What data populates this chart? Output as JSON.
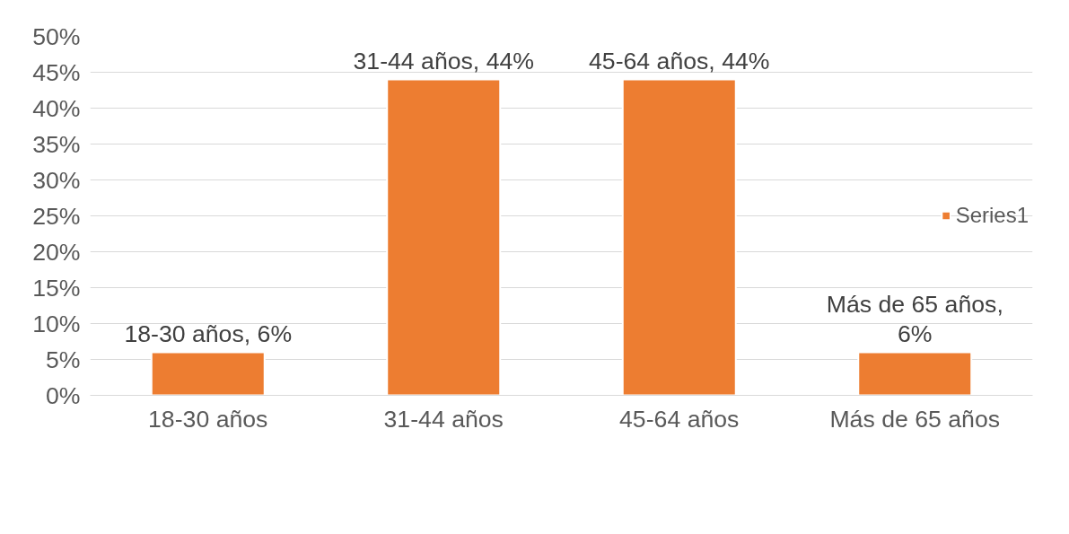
{
  "chart_data": {
    "type": "bar",
    "categories": [
      "18-30 años",
      "31-44 años",
      "45-64 años",
      "Más de 65 años"
    ],
    "series": [
      {
        "name": "Series1",
        "color": "#ed7d31",
        "values": [
          6,
          44,
          44,
          6
        ],
        "value_labels": [
          "18-30 años, 6%",
          "31-44 años, 44%",
          "45-64 años, 44%",
          "Más de 65 años, 6%"
        ]
      }
    ],
    "ylim": [
      0,
      50
    ],
    "yticks": [
      {
        "value": 0,
        "label": "0%"
      },
      {
        "value": 5,
        "label": "5%"
      },
      {
        "value": 10,
        "label": "10%"
      },
      {
        "value": 15,
        "label": "15%"
      },
      {
        "value": 20,
        "label": "20%"
      },
      {
        "value": 25,
        "label": "25%"
      },
      {
        "value": 30,
        "label": "30%"
      },
      {
        "value": 35,
        "label": "35%"
      },
      {
        "value": 40,
        "label": "40%"
      },
      {
        "value": 45,
        "label": "45%"
      },
      {
        "value": 50,
        "label": "50%"
      }
    ],
    "grid": "y",
    "legend": "right"
  }
}
